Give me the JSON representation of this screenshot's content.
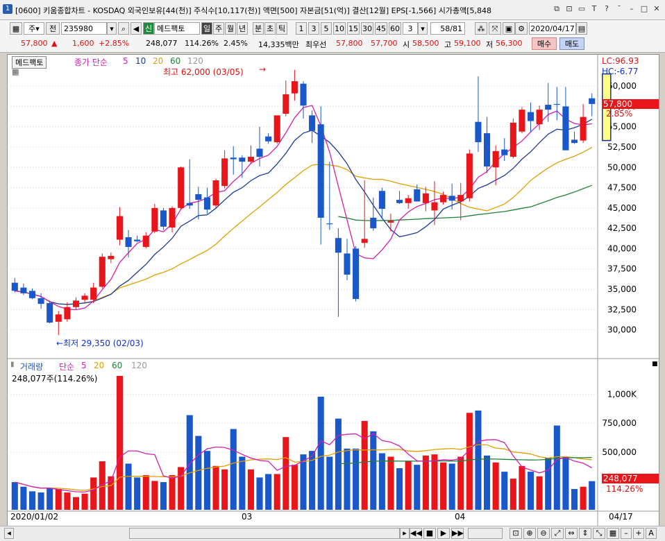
{
  "window": {
    "number": "1",
    "title": "[0600] 키움종합차트 - KOSDAQ 외국인보유[44(천)] 주식수[10,117(천)] 액면[500] 자본금[51(억)] 결산[12월] EPS[-1,566] 시가총액[5,848"
  },
  "toolbar": {
    "period": "주",
    "prev_label": "전",
    "code": "235980",
    "credit_badge": "신",
    "stock_name": "메드팩토",
    "period_tabs": [
      "일",
      "주",
      "월",
      "년",
      "분",
      "초",
      "틱"
    ],
    "minute_options": [
      "1",
      "3",
      "5",
      "10",
      "15",
      "30",
      "45",
      "60"
    ],
    "interval_value": "3",
    "page_count": "58/81",
    "date": "2020/04/17"
  },
  "quote": {
    "price": "57,800",
    "arrow": "▲",
    "change": "1,600",
    "change_pct": "+2.85%",
    "volume": "248,077",
    "volume_pct": "114.26%",
    "turnover": "2.45%",
    "amount": "14,335백만",
    "best_label": "최우선",
    "ask": "57,800",
    "bid": "57,700",
    "open_label": "시",
    "open": "58,500",
    "high_label": "고",
    "high": "59,100",
    "low_label": "저",
    "low": "56,300",
    "buy_label": "매수",
    "sell_label": "매도"
  },
  "price_panel": {
    "name_tab": "메드팩토",
    "legend_close": "종가 단순",
    "ma_periods": [
      "5",
      "10",
      "20",
      "60",
      "120"
    ],
    "high_note": "최고 62,000 (03/05)",
    "low_note": "←최저 29,350 (02/03)",
    "lc_label": "LC:96.93",
    "hc_label": "HC:-6.77",
    "current_price_tag": "57,800",
    "current_pct_tag": "2.85%",
    "y_ticks": [
      "60,000",
      "57,500",
      "55,000",
      "52,500",
      "50,000",
      "47,500",
      "45,000",
      "42,500",
      "40,000",
      "37,500",
      "35,000",
      "32,500",
      "30,000"
    ]
  },
  "volume_panel": {
    "legend": "거래량",
    "legend_ma": "단순",
    "ma_periods": [
      "5",
      "20",
      "60",
      "120"
    ],
    "current": "248,077주(114.26%)",
    "y_ticks": [
      "1,000K",
      "750,000",
      "500,000"
    ],
    "current_tag": "248,077",
    "current_pct_tag": "114.26%"
  },
  "xaxis": {
    "labels": [
      "2020/01/02",
      "03",
      "04"
    ],
    "right_label": "04/17"
  },
  "colors": {
    "up": "#e8161b",
    "down": "#1a57c8",
    "ma5": "#d020b0",
    "ma10": "#1c3a9c",
    "ma20": "#e0a000",
    "ma60": "#20803a",
    "vol_ma5": "#d020b0",
    "vol_ma20": "#e0a000",
    "vol_ma60": "#20803a"
  },
  "chart_data": {
    "type": "candlestick",
    "ylim": [
      28000,
      63000
    ],
    "candles": [
      {
        "o": 35800,
        "h": 36400,
        "l": 34600,
        "c": 34800,
        "v": 240000
      },
      {
        "o": 35200,
        "h": 35700,
        "l": 34300,
        "c": 34500,
        "v": 200000
      },
      {
        "o": 34800,
        "h": 35100,
        "l": 33800,
        "c": 33900,
        "v": 160000
      },
      {
        "o": 33900,
        "h": 34500,
        "l": 32600,
        "c": 33200,
        "v": 150000
      },
      {
        "o": 33300,
        "h": 33600,
        "l": 30800,
        "c": 30900,
        "v": 190000
      },
      {
        "o": 31000,
        "h": 32300,
        "l": 29350,
        "c": 31900,
        "v": 180000
      },
      {
        "o": 31300,
        "h": 33400,
        "l": 31000,
        "c": 32800,
        "v": 150000
      },
      {
        "o": 32800,
        "h": 34000,
        "l": 32500,
        "c": 33600,
        "v": 110000
      },
      {
        "o": 33700,
        "h": 34500,
        "l": 33300,
        "c": 34200,
        "v": 140000
      },
      {
        "o": 33700,
        "h": 35800,
        "l": 33300,
        "c": 35200,
        "v": 280000
      },
      {
        "o": 35300,
        "h": 39400,
        "l": 35100,
        "c": 39000,
        "v": 420000
      },
      {
        "o": 38700,
        "h": 39500,
        "l": 38200,
        "c": 39100,
        "v": 290000
      },
      {
        "o": 41100,
        "h": 45100,
        "l": 40400,
        "c": 44000,
        "v": 1160000
      },
      {
        "o": 41400,
        "h": 42300,
        "l": 38900,
        "c": 40200,
        "v": 400000
      },
      {
        "o": 41100,
        "h": 41600,
        "l": 40800,
        "c": 40900,
        "v": 280000
      },
      {
        "o": 40200,
        "h": 42000,
        "l": 40000,
        "c": 41600,
        "v": 300000
      },
      {
        "o": 42100,
        "h": 45500,
        "l": 41900,
        "c": 45000,
        "v": 250000
      },
      {
        "o": 44700,
        "h": 45000,
        "l": 42300,
        "c": 42700,
        "v": 240000
      },
      {
        "o": 42600,
        "h": 45200,
        "l": 42000,
        "c": 45000,
        "v": 300000
      },
      {
        "o": 45000,
        "h": 50100,
        "l": 44800,
        "c": 50000,
        "v": 370000
      },
      {
        "o": 45600,
        "h": 51000,
        "l": 44900,
        "c": 45300,
        "v": 820000
      },
      {
        "o": 46700,
        "h": 47600,
        "l": 43600,
        "c": 46000,
        "v": 640000
      },
      {
        "o": 46300,
        "h": 47500,
        "l": 44300,
        "c": 44800,
        "v": 510000
      },
      {
        "o": 45300,
        "h": 48600,
        "l": 45000,
        "c": 48400,
        "v": 380000
      },
      {
        "o": 47700,
        "h": 52100,
        "l": 47400,
        "c": 51100,
        "v": 350000
      },
      {
        "o": 51200,
        "h": 52600,
        "l": 49100,
        "c": 51000,
        "v": 700000
      },
      {
        "o": 51200,
        "h": 51500,
        "l": 48700,
        "c": 50700,
        "v": 460000
      },
      {
        "o": 50700,
        "h": 52700,
        "l": 50500,
        "c": 51300,
        "v": 350000
      },
      {
        "o": 52300,
        "h": 55000,
        "l": 50100,
        "c": 51300,
        "v": 280000
      },
      {
        "o": 53800,
        "h": 54200,
        "l": 52900,
        "c": 53200,
        "v": 310000
      },
      {
        "o": 53100,
        "h": 56300,
        "l": 52900,
        "c": 56400,
        "v": 310000
      },
      {
        "o": 56600,
        "h": 60700,
        "l": 56300,
        "c": 59000,
        "v": 630000
      },
      {
        "o": 59100,
        "h": 62000,
        "l": 58200,
        "c": 60600,
        "v": 390000
      },
      {
        "o": 60300,
        "h": 60600,
        "l": 56000,
        "c": 57600,
        "v": 480000
      },
      {
        "o": 56400,
        "h": 57000,
        "l": 53000,
        "c": 54500,
        "v": 510000
      },
      {
        "o": 55300,
        "h": 57500,
        "l": 40500,
        "c": 43800,
        "v": 980000
      },
      {
        "o": 43100,
        "h": 50700,
        "l": 42300,
        "c": 43000,
        "v": 460000
      },
      {
        "o": 41300,
        "h": 42500,
        "l": 31600,
        "c": 39500,
        "v": 790000
      },
      {
        "o": 39400,
        "h": 41200,
        "l": 36100,
        "c": 36800,
        "v": 530000
      },
      {
        "o": 40000,
        "h": 40300,
        "l": 33500,
        "c": 33800,
        "v": 530000
      },
      {
        "o": 40700,
        "h": 48400,
        "l": 40100,
        "c": 41200,
        "v": 770000
      },
      {
        "o": 43800,
        "h": 46300,
        "l": 42200,
        "c": 42500,
        "v": 680000
      },
      {
        "o": 47100,
        "h": 47500,
        "l": 43700,
        "c": 44900,
        "v": 490000
      },
      {
        "o": 43200,
        "h": 44300,
        "l": 42100,
        "c": 43400,
        "v": 460000
      },
      {
        "o": 46000,
        "h": 47100,
        "l": 45500,
        "c": 45600,
        "v": 360000
      },
      {
        "o": 45600,
        "h": 46600,
        "l": 44900,
        "c": 46200,
        "v": 420000
      },
      {
        "o": 47300,
        "h": 47900,
        "l": 45800,
        "c": 45800,
        "v": 390000
      },
      {
        "o": 45600,
        "h": 47600,
        "l": 44600,
        "c": 46800,
        "v": 470000
      },
      {
        "o": 44700,
        "h": 48300,
        "l": 42900,
        "c": 45700,
        "v": 480000
      },
      {
        "o": 45700,
        "h": 47000,
        "l": 45400,
        "c": 46600,
        "v": 410000
      },
      {
        "o": 46500,
        "h": 48000,
        "l": 44800,
        "c": 45900,
        "v": 400000
      },
      {
        "o": 45800,
        "h": 48100,
        "l": 43500,
        "c": 46600,
        "v": 460000
      },
      {
        "o": 46200,
        "h": 52200,
        "l": 45800,
        "c": 51700,
        "v": 840000
      },
      {
        "o": 55600,
        "h": 61200,
        "l": 51900,
        "c": 53100,
        "v": 860000
      },
      {
        "o": 54200,
        "h": 56200,
        "l": 49300,
        "c": 50100,
        "v": 470000
      },
      {
        "o": 50000,
        "h": 52700,
        "l": 47800,
        "c": 52000,
        "v": 410000
      },
      {
        "o": 52200,
        "h": 53600,
        "l": 50800,
        "c": 51500,
        "v": 330000
      },
      {
        "o": 51300,
        "h": 56000,
        "l": 51100,
        "c": 55500,
        "v": 270000
      },
      {
        "o": 54400,
        "h": 57400,
        "l": 54200,
        "c": 57100,
        "v": 380000
      },
      {
        "o": 56800,
        "h": 58000,
        "l": 54300,
        "c": 55700,
        "v": 330000
      },
      {
        "o": 55300,
        "h": 57600,
        "l": 54600,
        "c": 57100,
        "v": 290000
      },
      {
        "o": 57700,
        "h": 60400,
        "l": 55600,
        "c": 57100,
        "v": 450000
      },
      {
        "o": 57800,
        "h": 59900,
        "l": 55800,
        "c": 57700,
        "v": 730000
      },
      {
        "o": 57500,
        "h": 59900,
        "l": 52100,
        "c": 52100,
        "v": 460000
      },
      {
        "o": 53400,
        "h": 54400,
        "l": 52900,
        "c": 53000,
        "v": 180000
      },
      {
        "o": 53300,
        "h": 57800,
        "l": 53000,
        "c": 56200,
        "v": 200000
      },
      {
        "o": 58500,
        "h": 59100,
        "l": 56300,
        "c": 57800,
        "v": 248077
      }
    ]
  }
}
